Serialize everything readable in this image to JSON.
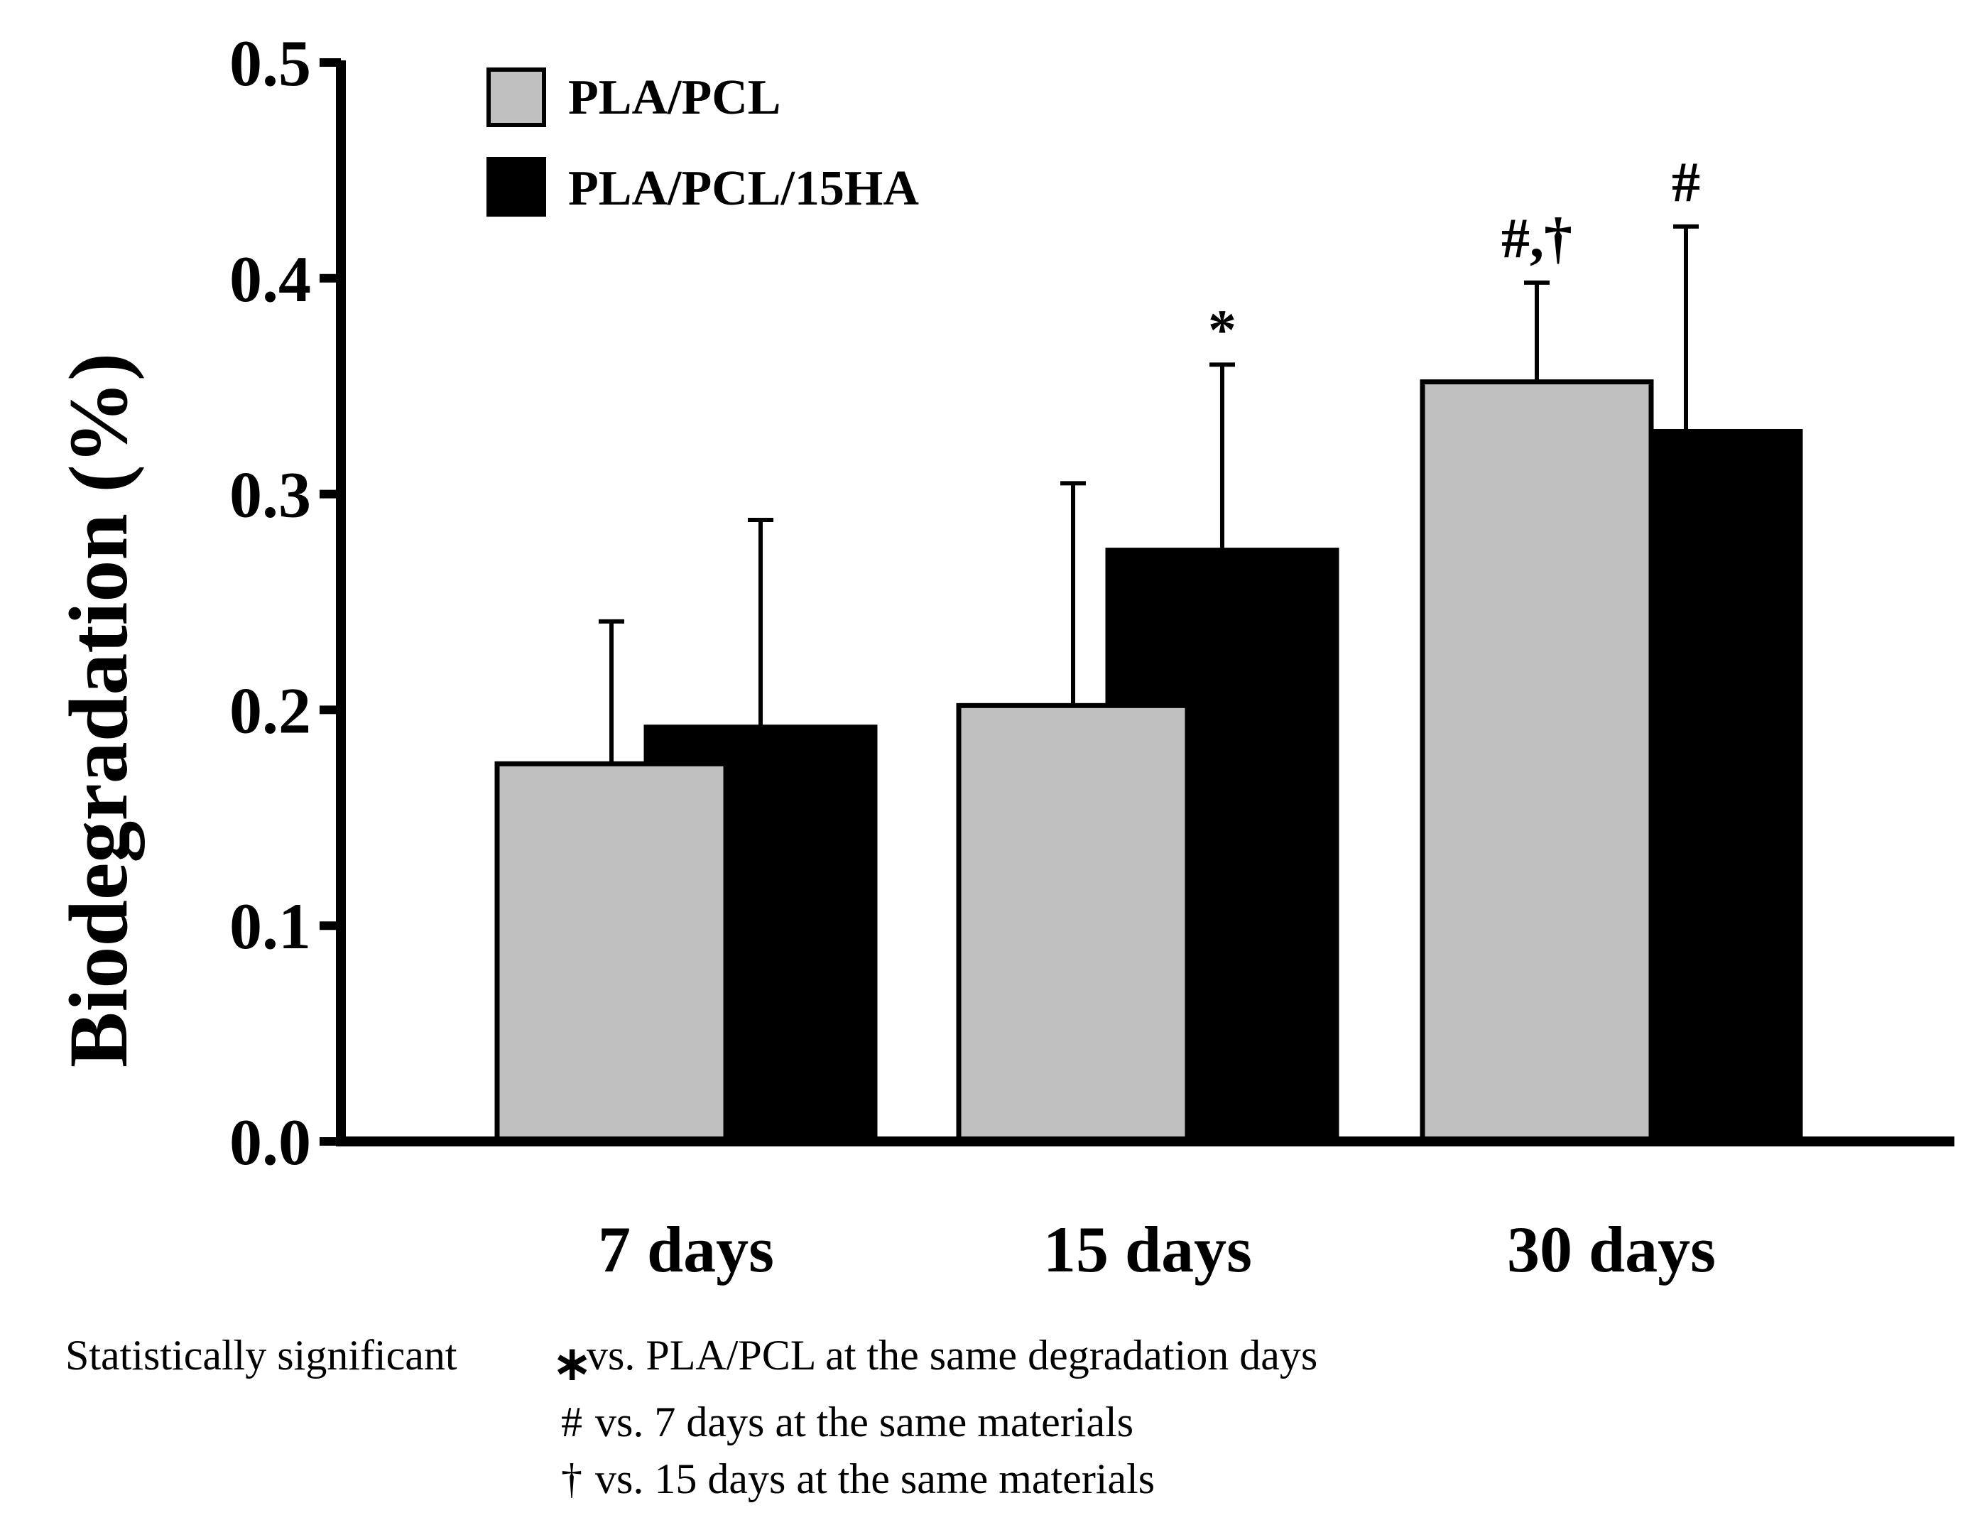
{
  "chart_data": {
    "type": "bar",
    "title": "",
    "xlabel": "",
    "ylabel": "Biodegradation (%)",
    "ylim": [
      0.0,
      0.5
    ],
    "yticks": [
      "0.0",
      "0.1",
      "0.2",
      "0.3",
      "0.4",
      "0.5"
    ],
    "categories": [
      "7 days",
      "15 days",
      "30 days"
    ],
    "legend_position": "top-left",
    "series": [
      {
        "name": "PLA/PCL",
        "color": "#c0c0c0",
        "values": [
          0.175,
          0.202,
          0.352
        ],
        "errors": [
          0.066,
          0.103,
          0.046
        ],
        "annotations": [
          "",
          "",
          "#,†"
        ]
      },
      {
        "name": "PLA/PCL/15HA",
        "color": "#000000",
        "values": [
          0.192,
          0.274,
          0.329
        ],
        "errors": [
          0.096,
          0.086,
          0.095
        ],
        "annotations": [
          "",
          "*",
          "#"
        ]
      }
    ],
    "footnote": {
      "prefix": "Statistically significant",
      "lines": [
        {
          "symbol": "∗",
          "text": "vs. PLA/PCL at the same degradation days"
        },
        {
          "symbol": "#",
          "text": "vs. 7 days at the same materials"
        },
        {
          "symbol": "†",
          "text": "vs. 15 days at the same materials"
        }
      ]
    }
  }
}
